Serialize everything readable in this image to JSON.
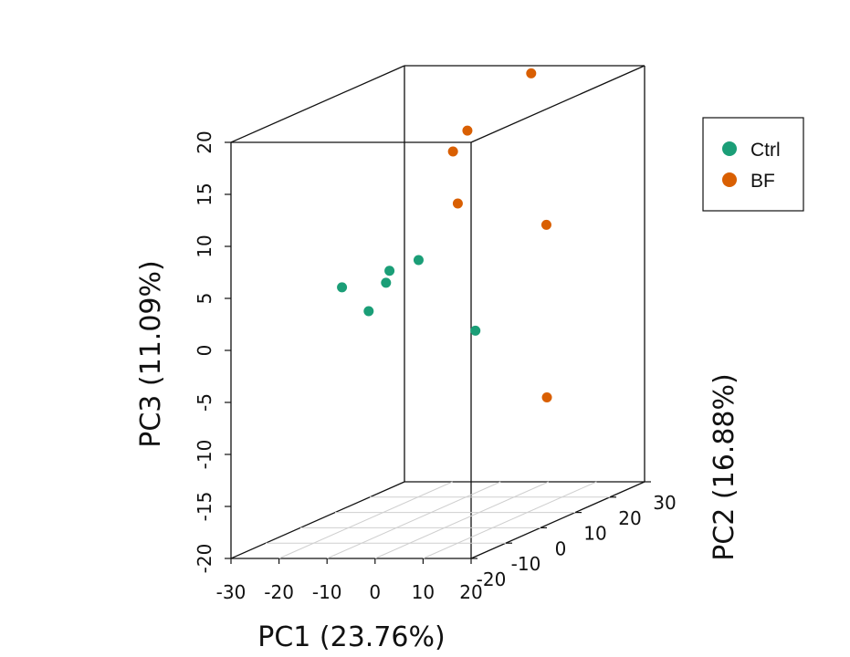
{
  "chart_data": {
    "type": "scatter",
    "projection": "3d",
    "xlabel": "PC1 (23.76%)",
    "ylabel": "PC2 (16.88%)",
    "zlabel": "PC3 (11.09%)",
    "xlim": [
      -30,
      20
    ],
    "ylim": [
      -20,
      30
    ],
    "zlim": [
      -20,
      20
    ],
    "x_ticks": [
      "-30",
      "-20",
      "-10",
      "0",
      "10",
      "20"
    ],
    "y_ticks": [
      "-20",
      "-10",
      "0",
      "10",
      "20",
      "30"
    ],
    "z_ticks": [
      "-20",
      "-15",
      "-10",
      "-5",
      "0",
      "5",
      "10",
      "15",
      "20"
    ],
    "grid": "floor",
    "legend_position": "right",
    "series": [
      {
        "name": "Ctrl",
        "color": "#1b9e77",
        "points": [
          {
            "x": -10,
            "y": -8,
            "z": 2
          },
          {
            "x": -17,
            "y": -6,
            "z": 4
          },
          {
            "x": -10,
            "y": -2,
            "z": 5
          },
          {
            "x": -10,
            "y": -3,
            "z": 4
          },
          {
            "x": -9,
            "y": 5,
            "z": 5
          },
          {
            "x": -8,
            "y": 20,
            "z": -4
          }
        ]
      },
      {
        "name": "BF",
        "color": "#d95f02",
        "points": [
          {
            "x": 0,
            "y": 25,
            "z": 20
          },
          {
            "x": -1,
            "y": 8,
            "z": 17
          },
          {
            "x": -4,
            "y": 8,
            "z": 15
          },
          {
            "x": -3,
            "y": 8,
            "z": 10
          },
          {
            "x": 1,
            "y": 28,
            "z": 5
          },
          {
            "x": 4,
            "y": 24,
            "z": -11
          }
        ]
      }
    ]
  }
}
